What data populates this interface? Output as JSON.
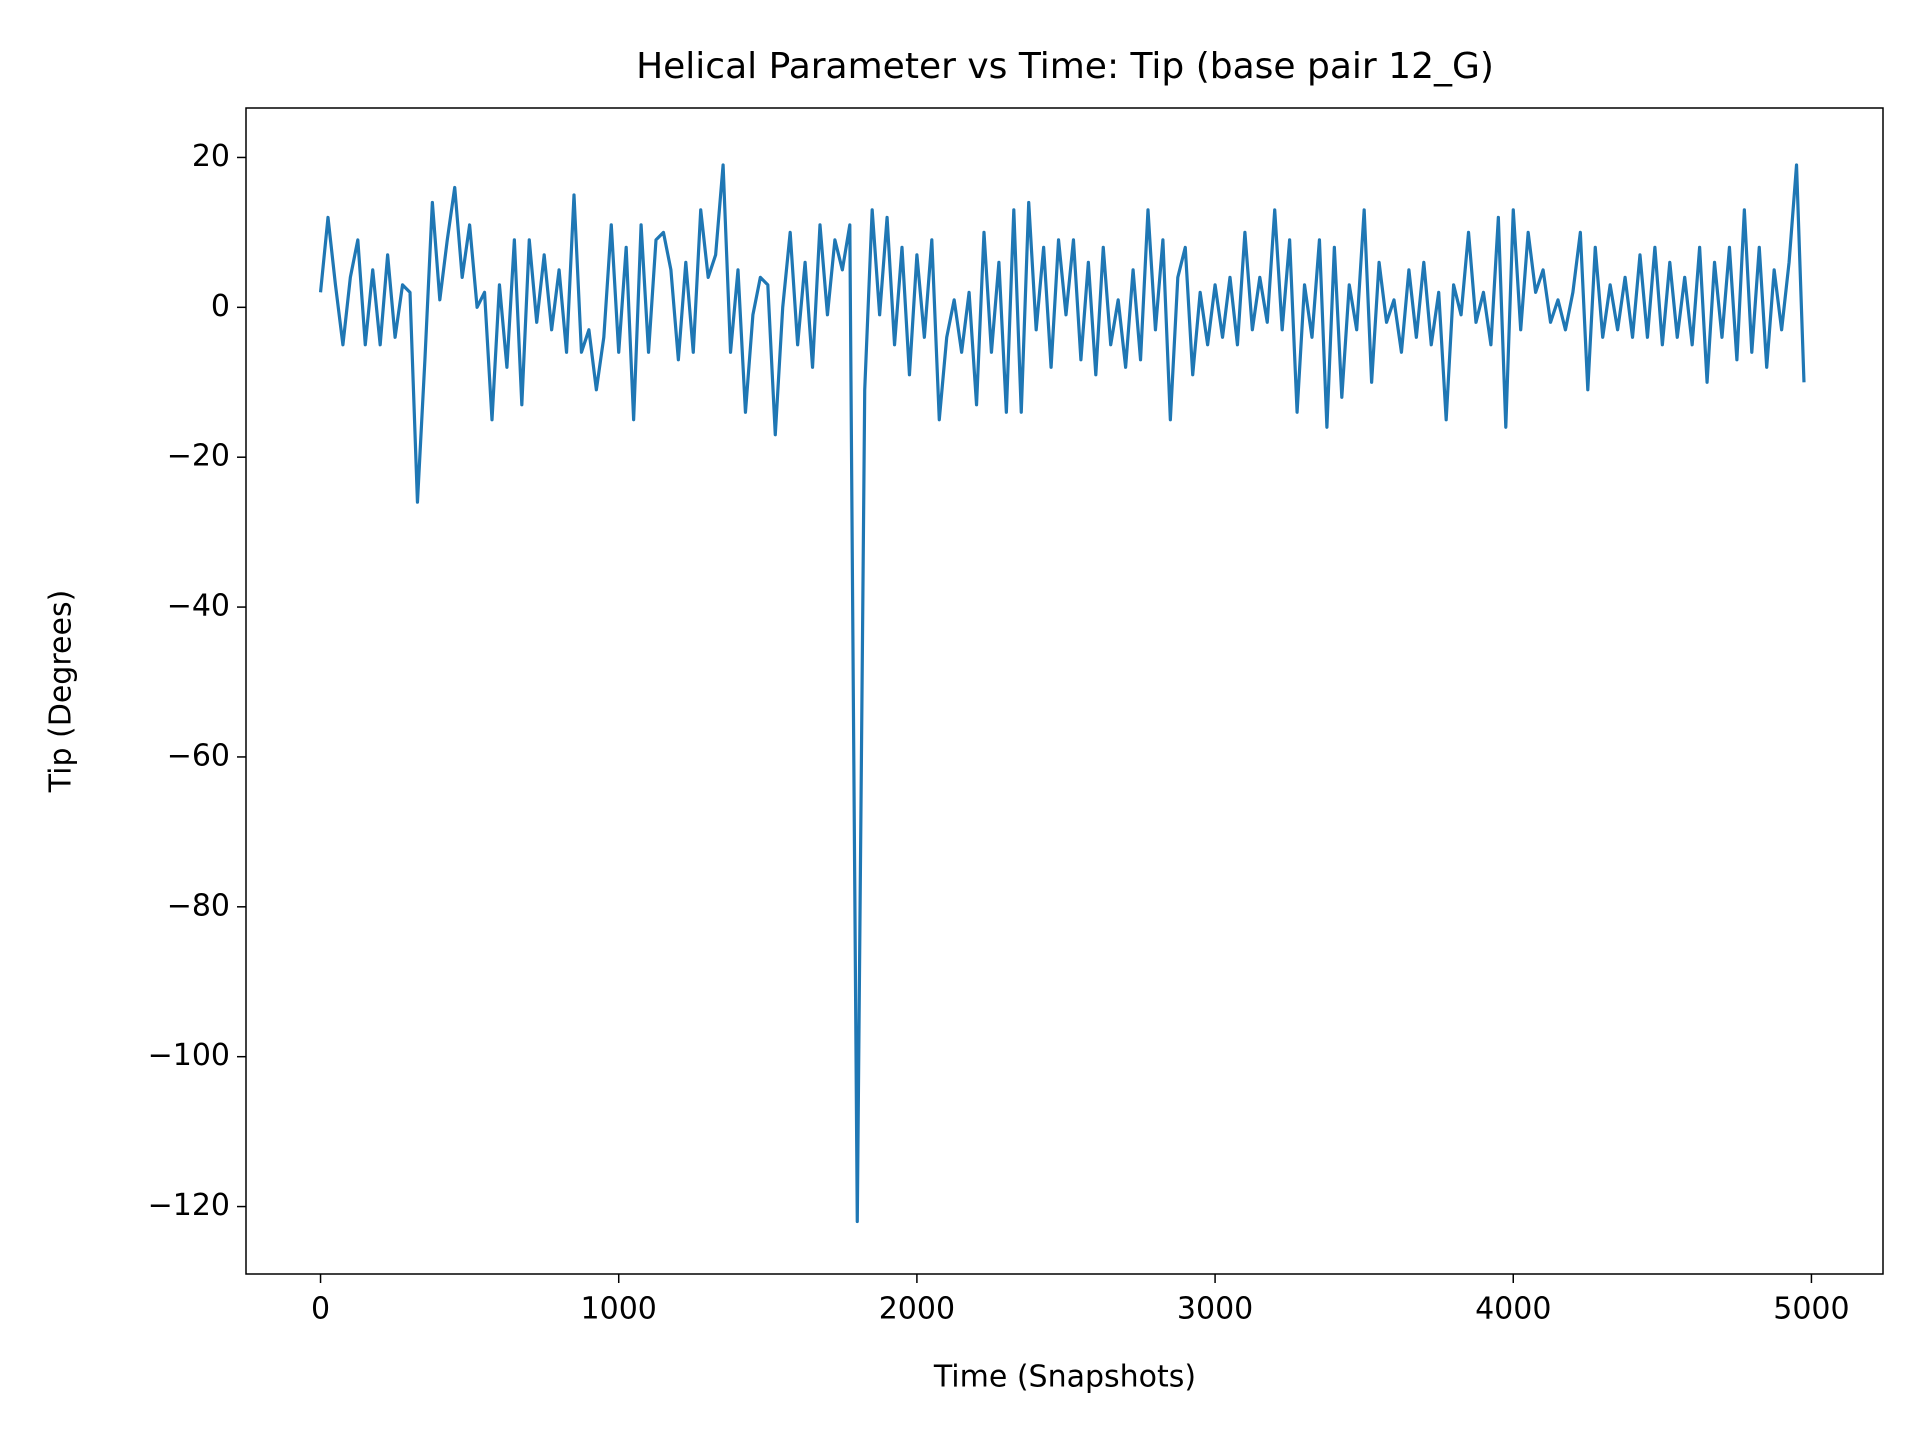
{
  "chart_data": {
    "type": "line",
    "title": "Helical Parameter vs Time: Tip (base pair  12_G)",
    "x_label": "Time (Snapshots)",
    "y_label": "Tip (Degrees)",
    "color": "#1f77b4",
    "x": [
      0,
      25,
      50,
      75,
      100,
      125,
      150,
      175,
      200,
      225,
      250,
      275,
      300,
      325,
      350,
      375,
      400,
      425,
      450,
      475,
      500,
      525,
      550,
      575,
      600,
      625,
      650,
      675,
      700,
      725,
      750,
      775,
      800,
      825,
      850,
      875,
      900,
      925,
      950,
      975,
      1000,
      1025,
      1050,
      1075,
      1100,
      1125,
      1150,
      1175,
      1200,
      1225,
      1250,
      1275,
      1300,
      1325,
      1350,
      1375,
      1400,
      1425,
      1450,
      1475,
      1500,
      1525,
      1550,
      1575,
      1600,
      1625,
      1650,
      1675,
      1700,
      1725,
      1750,
      1775,
      1800,
      1825,
      1850,
      1875,
      1900,
      1925,
      1950,
      1975,
      2000,
      2025,
      2050,
      2075,
      2100,
      2125,
      2150,
      2175,
      2200,
      2225,
      2250,
      2275,
      2300,
      2325,
      2350,
      2375,
      2400,
      2425,
      2450,
      2475,
      2500,
      2525,
      2550,
      2575,
      2600,
      2625,
      2650,
      2675,
      2700,
      2725,
      2750,
      2775,
      2800,
      2825,
      2850,
      2875,
      2900,
      2925,
      2950,
      2975,
      3000,
      3025,
      3050,
      3075,
      3100,
      3125,
      3150,
      3175,
      3200,
      3225,
      3250,
      3275,
      3300,
      3325,
      3350,
      3375,
      3400,
      3425,
      3450,
      3475,
      3500,
      3525,
      3550,
      3575,
      3600,
      3625,
      3650,
      3675,
      3700,
      3725,
      3750,
      3775,
      3800,
      3825,
      3850,
      3875,
      3900,
      3925,
      3950,
      3975,
      4000,
      4025,
      4050,
      4075,
      4100,
      4125,
      4150,
      4175,
      4200,
      4225,
      4250,
      4275,
      4300,
      4325,
      4350,
      4375,
      4400,
      4425,
      4450,
      4475,
      4500,
      4525,
      4550,
      4575,
      4600,
      4625,
      4650,
      4675,
      4700,
      4725,
      4750,
      4775,
      4800,
      4825,
      4850,
      4875,
      4900,
      4925,
      4950,
      4975
    ],
    "values": [
      2,
      12,
      3,
      -5,
      4,
      9,
      -5,
      5,
      -5,
      7,
      -4,
      3,
      2,
      -26,
      -7,
      14,
      1,
      9,
      16,
      4,
      11,
      0,
      2,
      -15,
      3,
      -8,
      9,
      -13,
      9,
      -2,
      7,
      -3,
      5,
      -6,
      15,
      -6,
      -3,
      -11,
      -4,
      11,
      -6,
      8,
      -15,
      11,
      -6,
      9,
      10,
      5,
      -7,
      6,
      -6,
      13,
      4,
      7,
      19,
      -6,
      5,
      -14,
      -1,
      4,
      3,
      -17,
      0,
      10,
      -5,
      6,
      -8,
      11,
      -1,
      9,
      5,
      11,
      -122,
      -11,
      13,
      -1,
      12,
      -5,
      8,
      -9,
      7,
      -4,
      9,
      -15,
      -4,
      1,
      -6,
      2,
      -13,
      10,
      -6,
      6,
      -14,
      13,
      -14,
      14,
      -3,
      8,
      -8,
      9,
      -1,
      9,
      -7,
      6,
      -9,
      8,
      -5,
      1,
      -8,
      5,
      -7,
      13,
      -3,
      9,
      -15,
      4,
      8,
      -9,
      2,
      -5,
      3,
      -4,
      4,
      -5,
      10,
      -3,
      4,
      -2,
      13,
      -3,
      9,
      -14,
      3,
      -4,
      9,
      -16,
      8,
      -12,
      3,
      -3,
      13,
      -10,
      6,
      -2,
      1,
      -6,
      5,
      -4,
      6,
      -5,
      2,
      -15,
      3,
      -1,
      10,
      -2,
      2,
      -5,
      12,
      -16,
      13,
      -3,
      10,
      2,
      5,
      -2,
      1,
      -3,
      2,
      10,
      -11,
      8,
      -4,
      3,
      -3,
      4,
      -4,
      7,
      -4,
      8,
      -5,
      6,
      -4,
      4,
      -5,
      8,
      -10,
      6,
      -4,
      8,
      -7,
      13,
      -6,
      8,
      -8,
      5,
      -3,
      6,
      19,
      -10
    ],
    "xlim": [
      -250,
      5240
    ],
    "ylim": [
      -129,
      26.6
    ],
    "xticks": [
      0,
      1000,
      2000,
      3000,
      4000,
      5000
    ],
    "yticks": [
      {
        "value": 20,
        "label": "20"
      },
      {
        "value": 0,
        "label": "0"
      },
      {
        "value": -20,
        "label": "−20"
      },
      {
        "value": -40,
        "label": "−40"
      },
      {
        "value": -60,
        "label": "−60"
      },
      {
        "value": -80,
        "label": "−80"
      },
      {
        "value": -100,
        "label": "−100"
      },
      {
        "value": -120,
        "label": "−120"
      }
    ]
  }
}
